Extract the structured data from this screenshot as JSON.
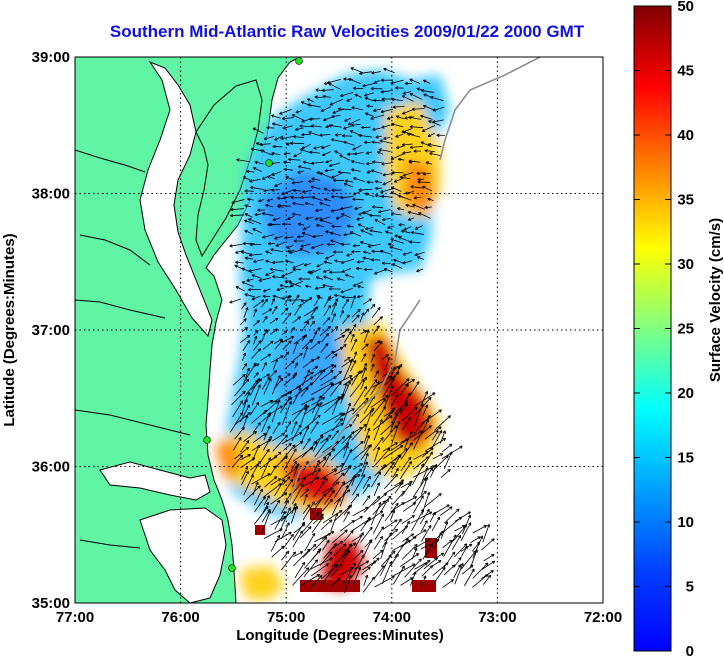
{
  "title": "Southern Mid-Atlantic Raw Velocities 2009/01/22 2000 GMT",
  "map": {
    "xlabel": "Longitude (Degrees:Minutes)",
    "ylabel": "Latitude (Degrees:Minutes)",
    "lon_range": [
      -77,
      -72
    ],
    "lat_range": [
      35,
      39
    ],
    "lon_ticks": [
      {
        "value": -77,
        "label": "77:00"
      },
      {
        "value": -76,
        "label": "76:00"
      },
      {
        "value": -75,
        "label": "75:00"
      },
      {
        "value": -74,
        "label": "74:00"
      },
      {
        "value": -73,
        "label": "73:00"
      },
      {
        "value": -72,
        "label": "72:00"
      }
    ],
    "lat_ticks": [
      {
        "value": 35,
        "label": "35:00"
      },
      {
        "value": 36,
        "label": "36:00"
      },
      {
        "value": 37,
        "label": "37:00"
      },
      {
        "value": 38,
        "label": "38:00"
      },
      {
        "value": 39,
        "label": "39:00"
      }
    ],
    "grid": "dotted",
    "land_color": "#5ff5a5",
    "coast_color": "#000000",
    "station_color": "#22dd22"
  },
  "colorbar": {
    "label": "Surface Velocity (cm/s)",
    "range": [
      0,
      50
    ],
    "ticks": [
      "0",
      "5",
      "10",
      "15",
      "20",
      "25",
      "30",
      "35",
      "40",
      "45",
      "50"
    ],
    "colormap": "jet"
  }
}
